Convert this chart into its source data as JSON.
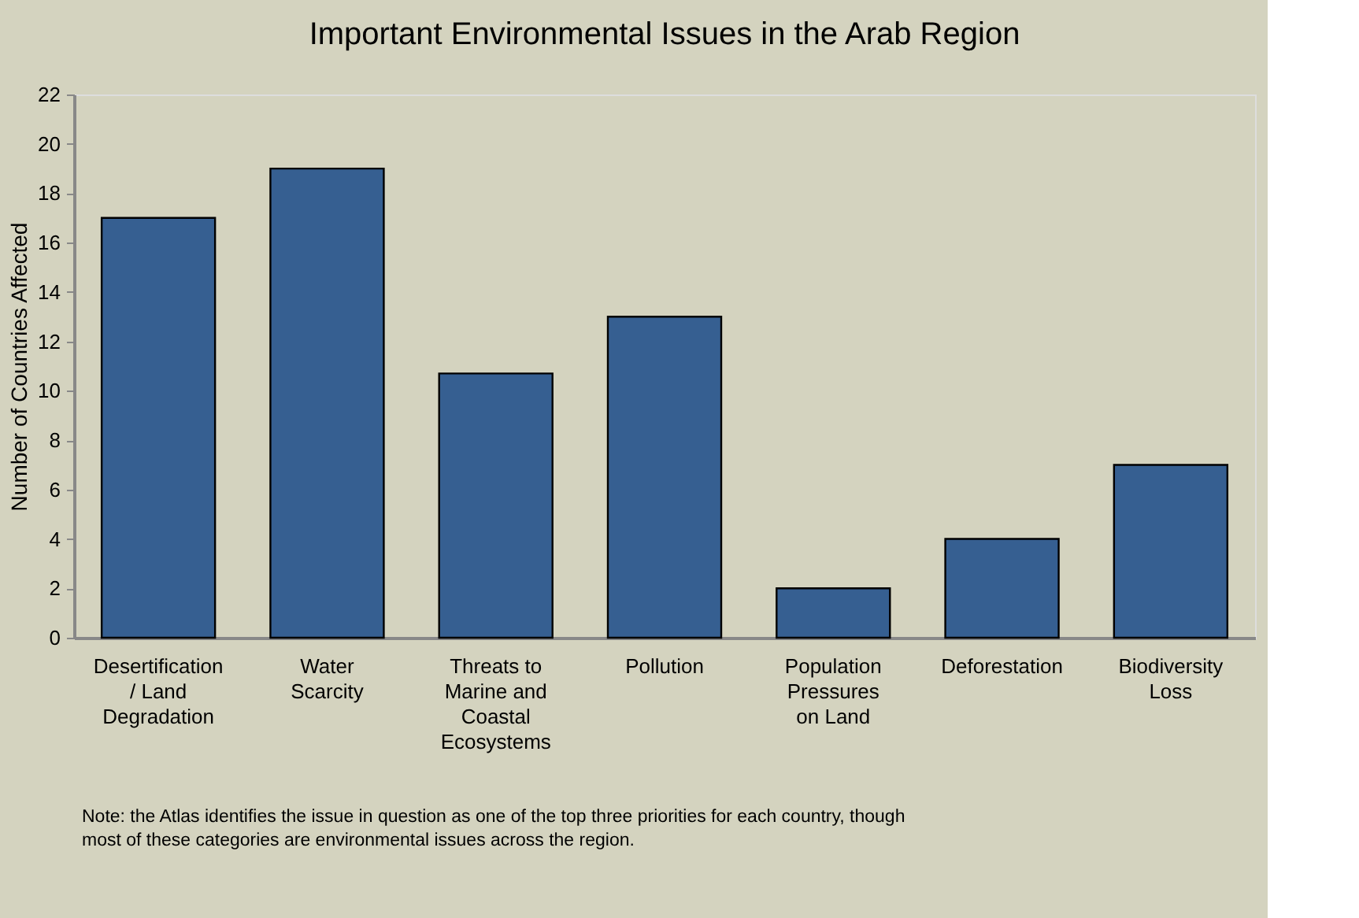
{
  "chart_data": {
    "type": "bar",
    "title": "Important Environmental Issues in the Arab Region",
    "ylabel": "Number of Countries Affected",
    "categories": [
      "Desertification / Land Degradation",
      "Water Scarcity",
      "Threats to Marine and Coastal Ecosystems",
      "Pollution",
      "Population Pressures on Land",
      "Deforestation",
      "Biodiversity Loss"
    ],
    "values": [
      17,
      19,
      10.7,
      13,
      2,
      4,
      7
    ],
    "color": "#365f91",
    "ylim": [
      0,
      22
    ],
    "yticks": [
      0,
      2,
      4,
      6,
      8,
      10,
      12,
      14,
      16,
      18,
      20,
      22
    ],
    "grid": false,
    "annotations": [
      "Note: the Atlas identifies the issue in question as one of the top three priorities for each country, though most of these categories are environmental issues across the region."
    ]
  }
}
